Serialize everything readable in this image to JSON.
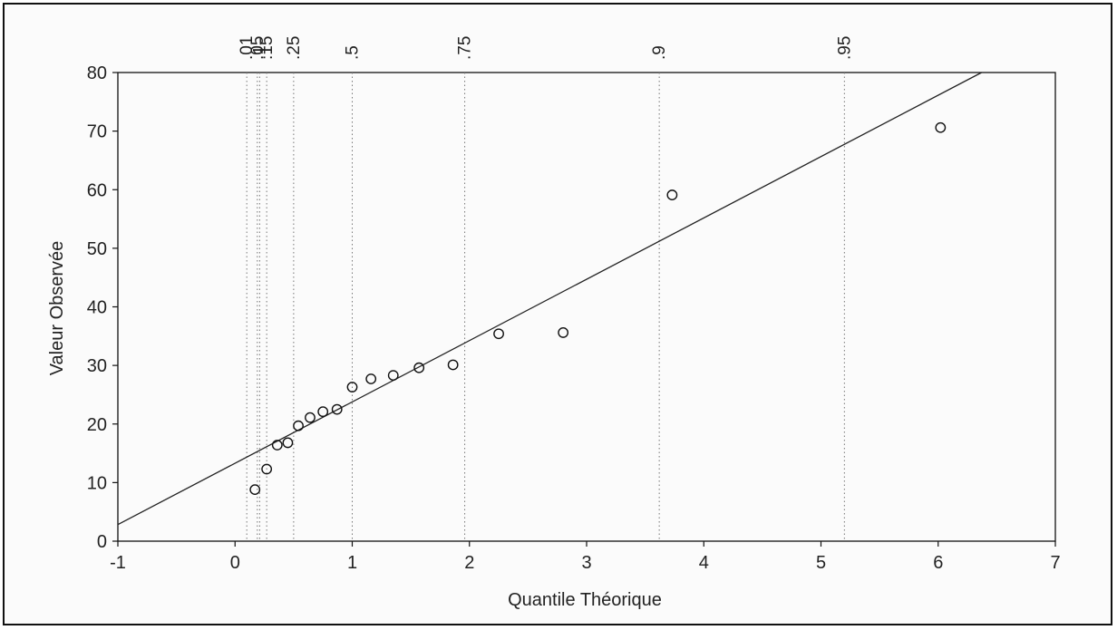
{
  "chart_data": {
    "type": "scatter",
    "title": "",
    "xlabel": "Quantile Théorique",
    "ylabel": "Valeur Observée",
    "xlim": [
      -1,
      7
    ],
    "ylim": [
      0,
      80
    ],
    "xticks": [
      "-1",
      "0",
      "1",
      "2",
      "3",
      "4",
      "5",
      "6",
      "7"
    ],
    "yticks": [
      "0",
      "10",
      "20",
      "30",
      "40",
      "50",
      "60",
      "70",
      "80"
    ],
    "grid": false,
    "points": [
      {
        "x": 0.17,
        "y": 8.8
      },
      {
        "x": 0.27,
        "y": 12.3
      },
      {
        "x": 0.36,
        "y": 16.4
      },
      {
        "x": 0.45,
        "y": 16.8
      },
      {
        "x": 0.54,
        "y": 19.7
      },
      {
        "x": 0.64,
        "y": 21.1
      },
      {
        "x": 0.75,
        "y": 22.1
      },
      {
        "x": 0.87,
        "y": 22.5
      },
      {
        "x": 1.0,
        "y": 26.3
      },
      {
        "x": 1.16,
        "y": 27.7
      },
      {
        "x": 1.35,
        "y": 28.3
      },
      {
        "x": 1.57,
        "y": 29.6
      },
      {
        "x": 1.86,
        "y": 30.1
      },
      {
        "x": 2.25,
        "y": 35.4
      },
      {
        "x": 2.8,
        "y": 35.6
      },
      {
        "x": 3.73,
        "y": 59.1
      },
      {
        "x": 6.02,
        "y": 70.6
      }
    ],
    "fit_line": {
      "slope": 10.47,
      "intercept": 13.3
    },
    "probability_lines": [
      {
        "label": ".01",
        "x": 0.1
      },
      {
        "label": ".05",
        "x": 0.19
      },
      {
        "label": ".1",
        "x": 0.21
      },
      {
        "label": ".15",
        "x": 0.27
      },
      {
        "label": ".25",
        "x": 0.5
      },
      {
        "label": ".5",
        "x": 1.0
      },
      {
        "label": ".75",
        "x": 1.96
      },
      {
        "label": ".9",
        "x": 3.62
      },
      {
        "label": ".95",
        "x": 5.2
      }
    ]
  }
}
